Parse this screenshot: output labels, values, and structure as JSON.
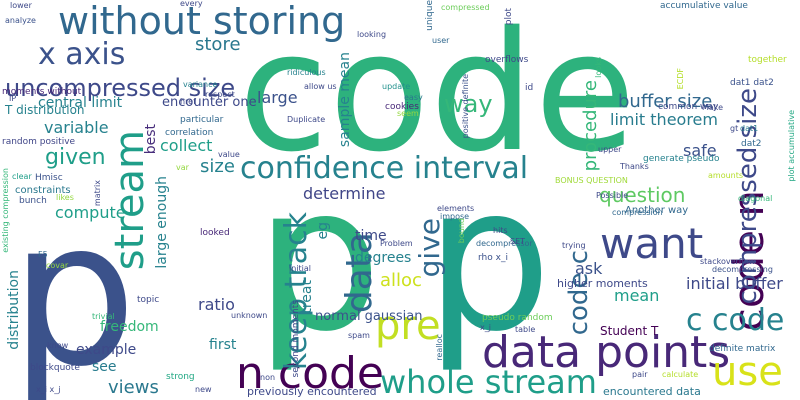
{
  "words": [
    {
      "text": "code",
      "color": "#2db27d"
    },
    {
      "text": "p",
      "color": "#2db27d"
    },
    {
      "text": "p",
      "color": "#1f9e89"
    },
    {
      "text": "p",
      "color": "#3b528b"
    },
    {
      "text": "without storing",
      "color": "#31688e"
    },
    {
      "text": "data points",
      "color": "#482878"
    },
    {
      "text": "stream",
      "color": "#1f9e89"
    },
    {
      "text": "n code",
      "color": "#440154"
    },
    {
      "text": "whole stream",
      "color": "#1f9e89"
    },
    {
      "text": "confidence interval",
      "color": "#26828e"
    },
    {
      "text": "code n",
      "color": "#440154"
    },
    {
      "text": "want",
      "color": "#3e4989"
    },
    {
      "text": "x axis",
      "color": "#3b528b"
    },
    {
      "text": "uncompressed size",
      "color": "#3e4989"
    },
    {
      "text": "data",
      "color": "#31688e"
    },
    {
      "text": "pre",
      "color": "#c2df23"
    },
    {
      "text": "use",
      "color": "#d8e219"
    },
    {
      "text": "c code",
      "color": "#26828e"
    },
    {
      "text": "keep track",
      "color": "#26828e"
    },
    {
      "text": "compressed size",
      "color": "#3e4989"
    },
    {
      "text": "code c",
      "color": "#31688e"
    },
    {
      "text": "give",
      "color": "#31688e"
    },
    {
      "text": "given",
      "color": "#1f9e89"
    },
    {
      "text": "way",
      "color": "#35b779"
    },
    {
      "text": "question",
      "color": "#5ec962"
    },
    {
      "text": "buffer size",
      "color": "#31688e"
    },
    {
      "text": "limit theorem",
      "color": "#287c8e"
    },
    {
      "text": "central limit",
      "color": "#26828e"
    },
    {
      "text": "store",
      "color": "#2a788e"
    },
    {
      "text": "procedure",
      "color": "#35b779"
    },
    {
      "text": "variable",
      "color": "#26828e"
    },
    {
      "text": "collect",
      "color": "#1f9e89"
    },
    {
      "text": "size",
      "color": "#26828e"
    },
    {
      "text": "large",
      "color": "#3b528b"
    },
    {
      "text": "sample mean",
      "color": "#26828e"
    },
    {
      "text": "encounter one",
      "color": "#3e4989"
    },
    {
      "text": "safe",
      "color": "#3b528b"
    },
    {
      "text": "determine",
      "color": "#404688"
    },
    {
      "text": "compute",
      "color": "#1f9e89"
    },
    {
      "text": "large enough",
      "color": "#26828e"
    },
    {
      "text": "best",
      "color": "#472d7b"
    },
    {
      "text": "time",
      "color": "#3e4989"
    },
    {
      "text": "degrees",
      "color": "#26828e"
    },
    {
      "text": "alloc",
      "color": "#cde11d"
    },
    {
      "text": "ask",
      "color": "#3b528b"
    },
    {
      "text": "mean",
      "color": "#1f9e89"
    },
    {
      "text": "initial buffer",
      "color": "#3e4989"
    },
    {
      "text": "ratio",
      "color": "#3e4989"
    },
    {
      "text": "freedom",
      "color": "#35b779"
    },
    {
      "text": "example",
      "color": "#3e4989"
    },
    {
      "text": "first",
      "color": "#26828e"
    },
    {
      "text": "views",
      "color": "#2a788e"
    },
    {
      "text": "see",
      "color": "#287c8e"
    },
    {
      "text": "treat",
      "color": "#26828e"
    },
    {
      "text": "normal gaussian",
      "color": "#3b528b"
    },
    {
      "text": "Student T",
      "color": "#440154"
    },
    {
      "text": "higher moments",
      "color": "#3e4989"
    },
    {
      "text": "distribution",
      "color": "#26828e"
    },
    {
      "text": "previously encountered",
      "color": "#3e4989"
    },
    {
      "text": "encountered data",
      "color": "#2a788e"
    },
    {
      "text": "T distribution",
      "color": "#26828e"
    },
    {
      "text": "moments without",
      "color": "#482878"
    },
    {
      "text": "random positive",
      "color": "#404688"
    },
    {
      "text": "constraints",
      "color": "#2a788e"
    },
    {
      "text": "Hmisc",
      "color": "#3b528b"
    },
    {
      "text": "bunch",
      "color": "#3b528b"
    },
    {
      "text": "clear",
      "color": "#1f9e89"
    },
    {
      "text": "correlation",
      "color": "#31688e"
    },
    {
      "text": "particular",
      "color": "#31688e"
    },
    {
      "text": "looked",
      "color": "#482878"
    },
    {
      "text": "generate pseudo",
      "color": "#26828e"
    },
    {
      "text": "Another way",
      "color": "#31688e"
    },
    {
      "text": "BONUS QUESTION",
      "color": "#a0da39"
    },
    {
      "text": "second moments",
      "color": "#3e4989"
    },
    {
      "text": "eg",
      "color": "#26828e"
    },
    {
      "text": "topic",
      "color": "#3e4989"
    },
    {
      "text": "pseudo random",
      "color": "#6ccd5a"
    },
    {
      "text": "rho x_i",
      "color": "#3b528b"
    },
    {
      "text": "decompressor",
      "color": "#31688e"
    },
    {
      "text": "definite matrix",
      "color": "#31688e"
    },
    {
      "text": "common way",
      "color": "#3e4989"
    },
    {
      "text": "dat1 dat2",
      "color": "#3b528b"
    },
    {
      "text": "accumulative value",
      "color": "#31688e"
    },
    {
      "text": "compressed",
      "color": "#6ccd5a"
    },
    {
      "text": "overflows",
      "color": "#3e4989"
    },
    {
      "text": "analyze",
      "color": "#3b528b"
    },
    {
      "text": "every",
      "color": "#3e4989"
    },
    {
      "text": "unique",
      "color": "#31688e"
    },
    {
      "text": "plot",
      "color": "#3e4989"
    },
    {
      "text": "looking",
      "color": "#3e4989"
    },
    {
      "text": "user",
      "color": "#31688e"
    },
    {
      "text": "id",
      "color": "#3e4989"
    },
    {
      "text": "lower",
      "color": "#3e4989"
    },
    {
      "text": "variance",
      "color": "#26828e"
    },
    {
      "text": "respect",
      "color": "#3e4989"
    },
    {
      "text": "allow us",
      "color": "#3e4989"
    },
    {
      "text": "ridiculous",
      "color": "#26828e"
    },
    {
      "text": "easy",
      "color": "#2a788e"
    },
    {
      "text": "update",
      "color": "#21918c"
    },
    {
      "text": "cookies",
      "color": "#482878"
    },
    {
      "text": "Duplicate",
      "color": "#3e4989"
    },
    {
      "text": "seem",
      "color": "#95d840"
    },
    {
      "text": "href",
      "color": "#3e4989"
    },
    {
      "text": "positive definite",
      "color": "#3b528b"
    },
    {
      "text": "ECDF",
      "color": "#b5de2b"
    },
    {
      "text": "together",
      "color": "#b5de2b"
    },
    {
      "text": "looks",
      "color": "#35b779"
    },
    {
      "text": "Make",
      "color": "#3e4989"
    },
    {
      "text": "plot accumulative",
      "color": "#22a884"
    },
    {
      "text": "gt",
      "color": "#3e4989"
    },
    {
      "text": "dat1",
      "color": "#2a788e"
    },
    {
      "text": "dat2",
      "color": "#31688e"
    },
    {
      "text": "upper",
      "color": "#3e4989"
    },
    {
      "text": "value",
      "color": "#3e4989"
    },
    {
      "text": "var",
      "color": "#95d840"
    },
    {
      "text": "amounts",
      "color": "#b5de2b"
    },
    {
      "text": "Thanks",
      "color": "#3e4989"
    },
    {
      "text": "diagonal",
      "color": "#35b779"
    },
    {
      "text": "Possible",
      "color": "#3e4989"
    },
    {
      "text": "compression",
      "color": "#31688e"
    },
    {
      "text": "IP",
      "color": "#3e4989"
    },
    {
      "text": "existing compression",
      "color": "#35b779"
    },
    {
      "text": "likes",
      "color": "#95d840"
    },
    {
      "text": "matrix",
      "color": "#3e4989"
    },
    {
      "text": "elements",
      "color": "#3e4989"
    },
    {
      "text": "impose",
      "color": "#31688e"
    },
    {
      "text": "hits",
      "color": "#3e4989"
    },
    {
      "text": "bound",
      "color": "#6ccd5a"
    },
    {
      "text": "SET",
      "color": "#3e4989"
    },
    {
      "text": "trying",
      "color": "#3e4989"
    },
    {
      "text": "stackoverflow",
      "color": "#3e4989"
    },
    {
      "text": "decompressing",
      "color": "#3b528b"
    },
    {
      "text": "Problem",
      "color": "#3e4989"
    },
    {
      "text": "F5",
      "color": "#31688e"
    },
    {
      "text": "covar",
      "color": "#95d840"
    },
    {
      "text": "initial",
      "color": "#3e4989"
    },
    {
      "text": "trivial",
      "color": "#35b779"
    },
    {
      "text": "know",
      "color": "#3e4989"
    },
    {
      "text": "blockquote",
      "color": "#3e4989"
    },
    {
      "text": "unknown",
      "color": "#3e4989"
    },
    {
      "text": "spam",
      "color": "#3e4989"
    },
    {
      "text": "realloc",
      "color": "#31688e"
    },
    {
      "text": "table",
      "color": "#3e4989"
    },
    {
      "text": "x_j",
      "color": "#3e4989"
    },
    {
      "text": "pair",
      "color": "#3e4989"
    },
    {
      "text": "calculate",
      "color": "#b5de2b"
    },
    {
      "text": "x_i x_j",
      "color": "#3e4989"
    },
    {
      "text": "new",
      "color": "#3e4989"
    },
    {
      "text": "strong",
      "color": "#22a884"
    },
    {
      "text": "non",
      "color": "#3e4989"
    }
  ]
}
